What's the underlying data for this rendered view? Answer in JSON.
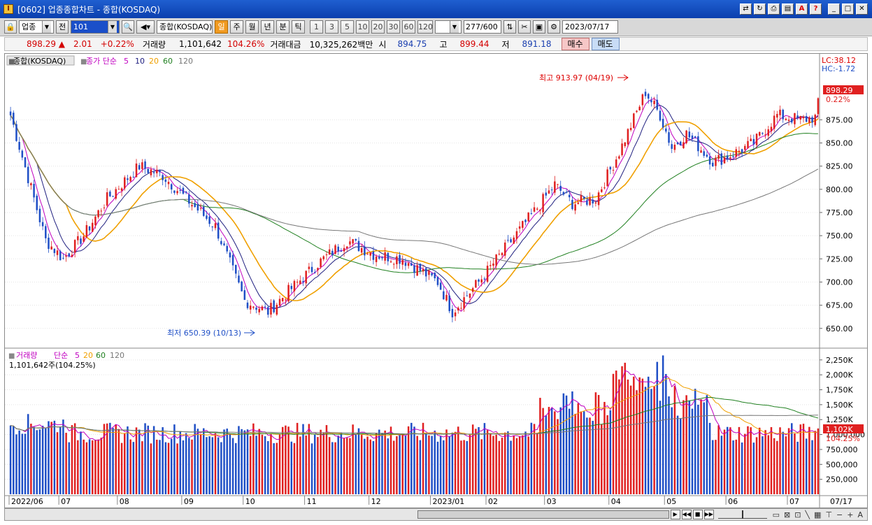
{
  "window": {
    "title": "[0602] 업종종합차트 - 종합(KOSDAQ)"
  },
  "toolbar": {
    "market_select": "업종",
    "prev_label": "전",
    "code": "101",
    "index_name": "종합(KOSDAQ)",
    "periods": [
      "일",
      "주",
      "월",
      "년",
      "분",
      "틱"
    ],
    "active_period": "일",
    "minute_values": [
      "1",
      "3",
      "5",
      "10",
      "20",
      "30",
      "60",
      "120"
    ],
    "count": "277",
    "count_max": "/600",
    "date": "2023/07/17"
  },
  "quote": {
    "price": "898.29 ▲",
    "change": "2.01",
    "change_pct": "+0.22%",
    "volume_label": "거래량",
    "volume": "1,101,642",
    "volume_pct": "104.26%",
    "amount_label": "거래대금",
    "amount": "10,325,262백만",
    "open_label": "시",
    "open": "894.75",
    "high_label": "고",
    "high": "899.44",
    "low_label": "저",
    "low": "891.18",
    "buy_label": "매수",
    "sell_label": "매도"
  },
  "colors": {
    "up": "#e02020",
    "down": "#1f4fc6",
    "ma5": "#c000c0",
    "ma10": "#202080",
    "ma20": "#f0a000",
    "ma60": "#208020",
    "ma120": "#777777"
  },
  "chart_data": [
    {
      "type": "candlestick",
      "title": "종합(KOSDAQ)",
      "legend": {
        "prefix": "종가 단순",
        "items": [
          "5",
          "10",
          "20",
          "60",
          "120"
        ]
      },
      "stats": {
        "lc": "LC:38.12",
        "hc": "HC:-1.72"
      },
      "y_range": [
        637,
        925
      ],
      "y_ticks": [
        "875.00",
        "850.00",
        "825.00",
        "800.00",
        "775.00",
        "750.00",
        "725.00",
        "700.00",
        "675.00",
        "650.00"
      ],
      "current": {
        "price": "898.29",
        "pct": "0.22%"
      },
      "annotations": {
        "high": "최고 913.97 (04/19)",
        "low": "최저 650.39 (10/13)"
      },
      "x_labels": [
        "2022/06",
        "07",
        "08",
        "09",
        "10",
        "11",
        "12",
        "2023/01",
        "02",
        "03",
        "04",
        "05",
        "06",
        "07"
      ],
      "x_label_right": "07/17",
      "anchors": [
        [
          0,
          880
        ],
        [
          12,
          745
        ],
        [
          18,
          725
        ],
        [
          25,
          750
        ],
        [
          33,
          790
        ],
        [
          44,
          825
        ],
        [
          52,
          815
        ],
        [
          60,
          790
        ],
        [
          70,
          760
        ],
        [
          80,
          680
        ],
        [
          88,
          668
        ],
        [
          95,
          690
        ],
        [
          105,
          720
        ],
        [
          115,
          745
        ],
        [
          124,
          730
        ],
        [
          134,
          725
        ],
        [
          146,
          700
        ],
        [
          151,
          668
        ],
        [
          160,
          700
        ],
        [
          170,
          740
        ],
        [
          180,
          780
        ],
        [
          186,
          805
        ],
        [
          192,
          785
        ],
        [
          200,
          790
        ],
        [
          208,
          840
        ],
        [
          217,
          905
        ],
        [
          222,
          880
        ],
        [
          226,
          845
        ],
        [
          231,
          860
        ],
        [
          240,
          830
        ],
        [
          245,
          835
        ],
        [
          254,
          850
        ],
        [
          262,
          880
        ],
        [
          270,
          875
        ],
        [
          276,
          878
        ]
      ]
    },
    {
      "type": "bar",
      "title": "거래량",
      "legend": {
        "prefix": "단순",
        "items": [
          "5",
          "20",
          "60",
          "120"
        ]
      },
      "subtitle": "1,101,642주(104.25%)",
      "y_range": [
        0,
        2400000
      ],
      "y_ticks": [
        "2,250K",
        "2,000K",
        "1,750K",
        "1,500K",
        "1,250K",
        "1,000,000",
        "750,000",
        "500,000",
        "250,000"
      ],
      "current": {
        "value": "1,102K",
        "pct": "104.25%"
      }
    }
  ]
}
